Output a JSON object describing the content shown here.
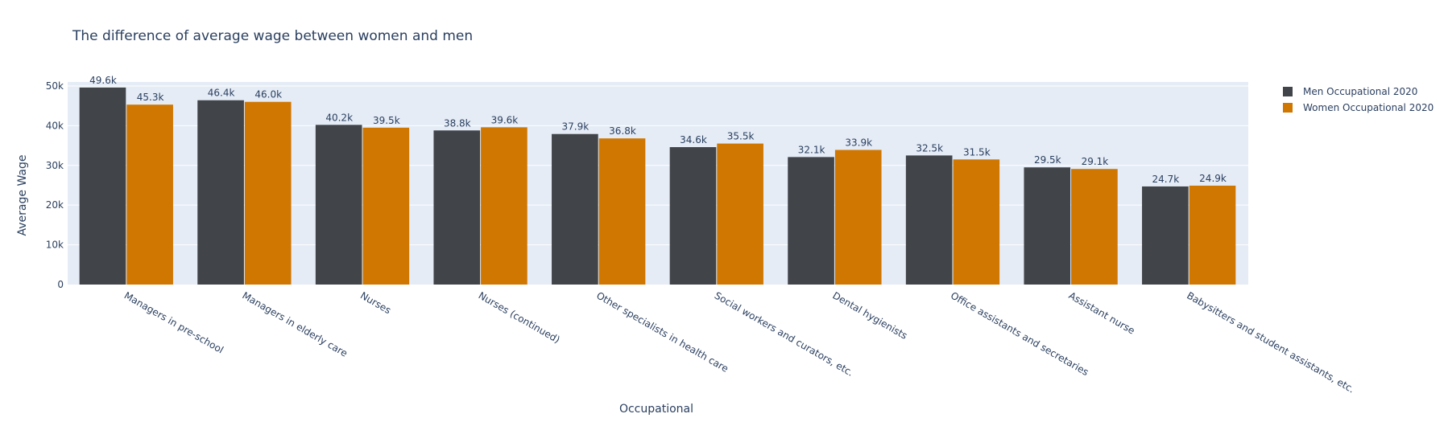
{
  "chart_data": {
    "type": "bar",
    "title": "The difference of average wage between women and men",
    "xlabel": "Occupational",
    "ylabel": "Average Wage",
    "ylim": [
      0,
      51000
    ],
    "yticks": [
      0,
      10000,
      20000,
      30000,
      40000,
      50000
    ],
    "ytick_labels": [
      "0",
      "10k",
      "20k",
      "30k",
      "40k",
      "50k"
    ],
    "grid": true,
    "legend_position": "top-right",
    "categories": [
      "Managers in pre-school",
      "Managers in elderly care",
      "Nurses",
      "Nurses (continued)",
      "Other specialists in health care",
      "Social workers and curators, etc.",
      "Dental hygienists",
      "Office assistants and secretaries",
      "Assistant nurse",
      "Babysitters and student assistants, etc."
    ],
    "series": [
      {
        "name": "Men Occupational 2020",
        "color": "#414449",
        "values": [
          49600,
          46400,
          40200,
          38800,
          37900,
          34600,
          32100,
          32500,
          29500,
          24700
        ],
        "labels": [
          "49.6k",
          "46.4k",
          "40.2k",
          "38.8k",
          "37.9k",
          "34.6k",
          "32.1k",
          "32.5k",
          "29.5k",
          "24.7k"
        ]
      },
      {
        "name": "Women Occupational 2020",
        "color": "#d07702",
        "values": [
          45300,
          46000,
          39500,
          39600,
          36800,
          35500,
          33900,
          31500,
          29100,
          24900
        ],
        "labels": [
          "45.3k",
          "46.0k",
          "39.5k",
          "39.6k",
          "36.8k",
          "35.5k",
          "33.9k",
          "31.5k",
          "29.1k",
          "24.9k"
        ]
      }
    ],
    "plot_background": "#e5ecf6"
  }
}
